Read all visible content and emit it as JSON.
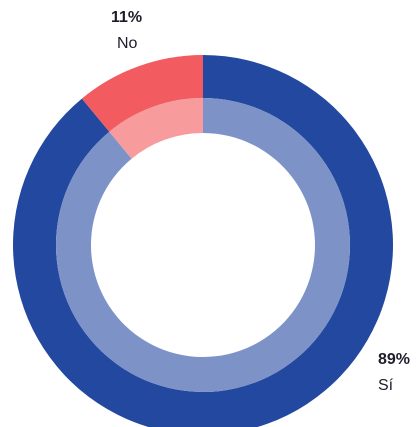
{
  "chart_data": {
    "type": "pie",
    "donut": true,
    "categories": [
      "Sí",
      "No"
    ],
    "values": [
      89,
      11
    ],
    "value_labels": [
      "89%",
      "11%"
    ],
    "colors": [
      "#23489f",
      "#f25b5f"
    ],
    "inner_colors": [
      "#7d93c8",
      "#f79b9d"
    ]
  }
}
